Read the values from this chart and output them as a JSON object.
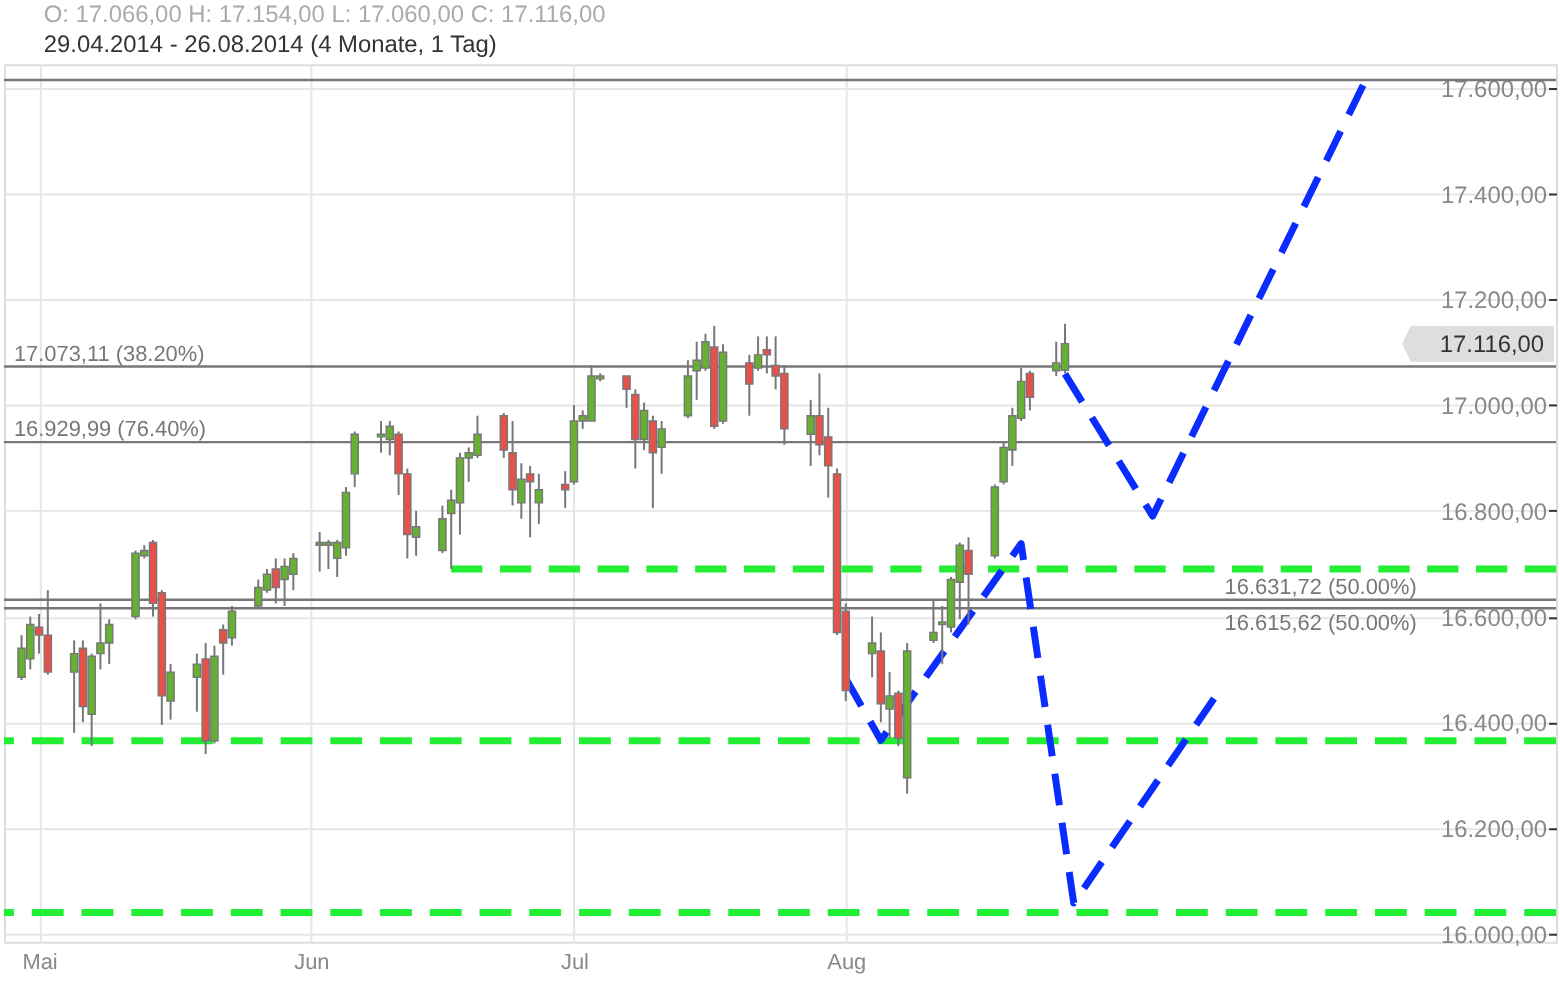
{
  "chart_data": {
    "type": "candlestick",
    "title": "O: 17.066,00  H: 17.154,00  L: 17.060,00  C: 17.116,00",
    "subtitle": "29.04.2014 - 26.08.2014 (4 Monate, 1 Tag)",
    "x": [
      "2014-04-29",
      "2014-04-30",
      "2014-05-01",
      "2014-05-02",
      "2014-05-05",
      "2014-05-06",
      "2014-05-07",
      "2014-05-08",
      "2014-05-09",
      "2014-05-12",
      "2014-05-13",
      "2014-05-14",
      "2014-05-15",
      "2014-05-16",
      "2014-05-19",
      "2014-05-20",
      "2014-05-21",
      "2014-05-22",
      "2014-05-23",
      "2014-05-26",
      "2014-05-27",
      "2014-05-28",
      "2014-05-29",
      "2014-05-30",
      "2014-06-02",
      "2014-06-03",
      "2014-06-04",
      "2014-06-05",
      "2014-06-06",
      "2014-06-09",
      "2014-06-10",
      "2014-06-11",
      "2014-06-12",
      "2014-06-13",
      "2014-06-16",
      "2014-06-17",
      "2014-06-18",
      "2014-06-19",
      "2014-06-20",
      "2014-06-23",
      "2014-06-24",
      "2014-06-25",
      "2014-06-26",
      "2014-06-27",
      "2014-06-30",
      "2014-07-01",
      "2014-07-02",
      "2014-07-03",
      "2014-07-04",
      "2014-07-07",
      "2014-07-08",
      "2014-07-09",
      "2014-07-10",
      "2014-07-11",
      "2014-07-14",
      "2014-07-15",
      "2014-07-16",
      "2014-07-17",
      "2014-07-18",
      "2014-07-21",
      "2014-07-22",
      "2014-07-23",
      "2014-07-24",
      "2014-07-25",
      "2014-07-28",
      "2014-07-29",
      "2014-07-30",
      "2014-07-31",
      "2014-08-01",
      "2014-08-04",
      "2014-08-05",
      "2014-08-06",
      "2014-08-07",
      "2014-08-08",
      "2014-08-11",
      "2014-08-12",
      "2014-08-13",
      "2014-08-14",
      "2014-08-15",
      "2014-08-18",
      "2014-08-19",
      "2014-08-20",
      "2014-08-21",
      "2014-08-22",
      "2014-08-25",
      "2014-08-26"
    ],
    "ohlc": [
      [
        16485,
        16565,
        16480,
        16540
      ],
      [
        16520,
        16600,
        16500,
        16585
      ],
      [
        16580,
        16605,
        16530,
        16565
      ],
      [
        16565,
        16650,
        16490,
        16495
      ],
      [
        16495,
        16555,
        16380,
        16530
      ],
      [
        16540,
        16555,
        16400,
        16430
      ],
      [
        16415,
        16530,
        16355,
        16525
      ],
      [
        16530,
        16625,
        16500,
        16550
      ],
      [
        16550,
        16595,
        16510,
        16585
      ],
      [
        16600,
        16725,
        16595,
        16720
      ],
      [
        16715,
        16735,
        16710,
        16725
      ],
      [
        16740,
        16745,
        16600,
        16625
      ],
      [
        16645,
        16650,
        16395,
        16450
      ],
      [
        16440,
        16510,
        16405,
        16495
      ],
      [
        16485,
        16530,
        16420,
        16510
      ],
      [
        16520,
        16550,
        16340,
        16365
      ],
      [
        16365,
        16545,
        16360,
        16525
      ],
      [
        16575,
        16585,
        16490,
        16550
      ],
      [
        16560,
        16620,
        16545,
        16610
      ],
      [
        16620,
        16670,
        16615,
        16655
      ],
      [
        16650,
        16690,
        16645,
        16680
      ],
      [
        16690,
        16710,
        16625,
        16655
      ],
      [
        16670,
        16710,
        16620,
        16695
      ],
      [
        16680,
        16720,
        16650,
        16710
      ],
      [
        16735,
        16760,
        16685,
        16740
      ],
      [
        16735,
        16745,
        16690,
        16740
      ],
      [
        16710,
        16745,
        16675,
        16740
      ],
      [
        16730,
        16845,
        16715,
        16835
      ],
      [
        16870,
        16950,
        16845,
        16945
      ],
      [
        16940,
        16970,
        16910,
        16945
      ],
      [
        16935,
        16970,
        16905,
        16960
      ],
      [
        16945,
        16950,
        16830,
        16870
      ],
      [
        16870,
        16880,
        16710,
        16755
      ],
      [
        16750,
        16800,
        16715,
        16770
      ],
      [
        16725,
        16810,
        16720,
        16785
      ],
      [
        16795,
        16840,
        16690,
        16820
      ],
      [
        16815,
        16910,
        16755,
        16900
      ],
      [
        16900,
        16920,
        16855,
        16910
      ],
      [
        16905,
        16980,
        16900,
        16945
      ],
      [
        16980,
        16985,
        16900,
        16915
      ],
      [
        16910,
        16970,
        16810,
        16840
      ],
      [
        16815,
        16890,
        16785,
        16860
      ],
      [
        16870,
        16885,
        16750,
        16855
      ],
      [
        16815,
        16870,
        16775,
        16840
      ],
      [
        16850,
        16875,
        16805,
        16840
      ],
      [
        16855,
        17000,
        16850,
        16970
      ],
      [
        16970,
        16990,
        16955,
        16980
      ],
      [
        16970,
        17075,
        16970,
        17055
      ],
      [
        17050,
        17060,
        17045,
        17055
      ],
      [
        17055,
        17055,
        16995,
        17030
      ],
      [
        17020,
        17030,
        16880,
        16935
      ],
      [
        16935,
        17005,
        16915,
        16990
      ],
      [
        16970,
        16980,
        16805,
        16910
      ],
      [
        16920,
        16970,
        16870,
        16955
      ],
      [
        16980,
        17085,
        16975,
        17055
      ],
      [
        17065,
        17120,
        17010,
        17085
      ],
      [
        17070,
        17135,
        17065,
        17120
      ],
      [
        17110,
        17150,
        16955,
        16960
      ],
      [
        16970,
        17115,
        16965,
        17100
      ],
      [
        17080,
        17095,
        16980,
        17040
      ],
      [
        17070,
        17130,
        17065,
        17095
      ],
      [
        17105,
        17130,
        17060,
        17095
      ],
      [
        17075,
        17130,
        17030,
        17055
      ],
      [
        17060,
        17075,
        16925,
        16955
      ],
      [
        16945,
        17010,
        16885,
        16980
      ],
      [
        16980,
        17060,
        16905,
        16925
      ],
      [
        16940,
        16995,
        16825,
        16885
      ],
      [
        16870,
        16880,
        16565,
        16570
      ],
      [
        16610,
        16625,
        16440,
        16460
      ],
      [
        16530,
        16600,
        16485,
        16550
      ],
      [
        16535,
        16570,
        16400,
        16435
      ],
      [
        16425,
        16495,
        16370,
        16450
      ],
      [
        16455,
        16460,
        16355,
        16370
      ],
      [
        16295,
        16550,
        16265,
        16535
      ],
      [
        16555,
        16630,
        16550,
        16570
      ],
      [
        16585,
        16620,
        16510,
        16590
      ],
      [
        16580,
        16675,
        16570,
        16670
      ],
      [
        16665,
        16740,
        16595,
        16735
      ],
      [
        16725,
        16750,
        16585,
        16680
      ],
      [
        16715,
        16850,
        16710,
        16845
      ],
      [
        16855,
        16930,
        16850,
        16920
      ],
      [
        16915,
        16995,
        16885,
        16980
      ],
      [
        16975,
        17070,
        16970,
        17045
      ],
      [
        17060,
        17065,
        16990,
        17015
      ],
      [
        17065,
        17120,
        17055,
        17080
      ],
      [
        17066,
        17154,
        17060,
        17116
      ]
    ],
    "colors": [
      "#66b032",
      "#66b032",
      "#e8504a",
      "#e8504a",
      "#66b032",
      "#e8504a",
      "#66b032",
      "#66b032",
      "#66b032",
      "#66b032",
      "#66b032",
      "#e8504a",
      "#e8504a",
      "#66b032",
      "#66b032",
      "#e8504a",
      "#66b032",
      "#e8504a",
      "#66b032",
      "#66b032",
      "#66b032",
      "#e8504a",
      "#66b032",
      "#66b032",
      "#66b032",
      "#66b032",
      "#66b032",
      "#66b032",
      "#66b032",
      "#66b032",
      "#66b032",
      "#e8504a",
      "#e8504a",
      "#66b032",
      "#66b032",
      "#66b032",
      "#66b032",
      "#66b032",
      "#66b032",
      "#e8504a",
      "#e8504a",
      "#66b032",
      "#e8504a",
      "#66b032",
      "#e8504a",
      "#66b032",
      "#66b032",
      "#66b032",
      "#66b032",
      "#e8504a",
      "#e8504a",
      "#66b032",
      "#e8504a",
      "#66b032",
      "#66b032",
      "#66b032",
      "#66b032",
      "#e8504a",
      "#66b032",
      "#e8504a",
      "#66b032",
      "#e8504a",
      "#e8504a",
      "#e8504a",
      "#66b032",
      "#e8504a",
      "#e8504a",
      "#e8504a",
      "#e8504a",
      "#66b032",
      "#e8504a",
      "#66b032",
      "#e8504a",
      "#66b032",
      "#66b032",
      "#66b032",
      "#66b032",
      "#66b032",
      "#e8504a",
      "#66b032",
      "#66b032",
      "#66b032",
      "#66b032",
      "#e8504a",
      "#66b032",
      "#66b032"
    ],
    "series": [
      {
        "type": "line",
        "color": "#22ee33",
        "line_style": "dashed",
        "x": [
          "2014-06-17",
          "2014-10-21"
        ],
        "values": [
          16690,
          16690
        ]
      },
      {
        "type": "line",
        "color": "#0a2cff",
        "line_style": "dashed",
        "x": [
          "2014-08-01",
          "2014-08-05",
          "2014-08-21",
          "2014-08-27",
          "2014-09-12"
        ],
        "values": [
          16483,
          16366,
          16738,
          16058,
          16445
        ]
      },
      {
        "type": "line",
        "color": "#0a2cff",
        "line_style": "dashed",
        "x": [
          "2014-08-26",
          "2014-09-05",
          "2014-09-29"
        ],
        "values": [
          17059,
          16790,
          17605
        ]
      }
    ],
    "ref_lines": [
      {
        "axis": "y",
        "value": 17615,
        "color": "#777777"
      },
      {
        "axis": "y",
        "value": 17073.11,
        "label": "17.073,11 (38.20%)",
        "color": "#777777"
      },
      {
        "axis": "y",
        "value": 16929.99,
        "label": "16.929,99 (76.40%)",
        "color": "#777777"
      },
      {
        "axis": "y",
        "value": 16631.72,
        "label": "16.631,72 (50.00%)",
        "color": "#777777"
      },
      {
        "axis": "y",
        "value": 16615.62,
        "label": "16.615,62 (50.00%)",
        "color": "#777777"
      },
      {
        "axis": "y",
        "value": 16365,
        "color": "#22ee33",
        "line_style": "dashed"
      },
      {
        "axis": "y",
        "value": 16040,
        "color": "#22ee33",
        "line_style": "dashed"
      }
    ],
    "annotations": [
      "17.116,00"
    ],
    "xlim": [
      "2014-04-27",
      "2014-10-21"
    ],
    "xticks": [
      {
        "value": "2014-05-01",
        "label": "Mai"
      },
      {
        "value": "2014-06-01",
        "label": "Jun"
      },
      {
        "value": "2014-07-01",
        "label": "Jul"
      },
      {
        "value": "2014-08-01",
        "label": "Aug"
      }
    ],
    "ylim": [
      15985,
      17645
    ],
    "yticks": [
      {
        "value": 16000,
        "label": "16.000,00"
      },
      {
        "value": 16200,
        "label": "16.200,00"
      },
      {
        "value": 16400,
        "label": "16.400,00"
      },
      {
        "value": 16600,
        "label": "16.600,00"
      },
      {
        "value": 16800,
        "label": "16.800,00"
      },
      {
        "value": 17000,
        "label": "17.000,00"
      },
      {
        "value": 17200,
        "label": "17.200,00"
      },
      {
        "value": 17400,
        "label": "17.400,00"
      },
      {
        "value": 17600,
        "label": "17.600,00"
      }
    ],
    "grid": true
  }
}
